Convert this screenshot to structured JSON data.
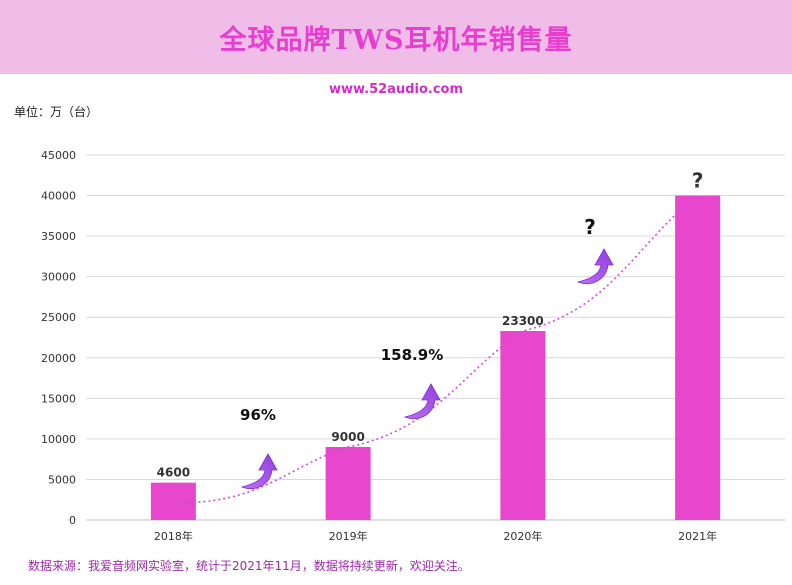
{
  "header": {
    "title": "全球品牌TWS耳机年销售量"
  },
  "website": "www.52audio.com",
  "unit": "单位：万（台）",
  "footer": "数据来源：我爱音频网实验室，统计于2021年11月，数据将持续更新，欢迎关注。",
  "chart_data": {
    "type": "bar",
    "title": "全球品牌TWS耳机年销售量",
    "ylabel": "单位：万（台）",
    "xlabel": "",
    "categories": [
      "2018年",
      "2019年",
      "2020年",
      "2021年"
    ],
    "values": [
      4600,
      9000,
      23300,
      40000
    ],
    "data_labels": [
      "4600",
      "9000",
      "23300",
      "?"
    ],
    "growth_labels": [
      "96%",
      "158.9%",
      "?"
    ],
    "ylim": [
      0,
      45000
    ],
    "yticks": [
      0,
      5000,
      10000,
      15000,
      20000,
      25000,
      30000,
      35000,
      40000,
      45000
    ],
    "grid": true,
    "trendline": "dotted",
    "colors": {
      "bar": "#e846cc",
      "trend": "#d24ad6",
      "arrow": "#a152e6"
    }
  }
}
